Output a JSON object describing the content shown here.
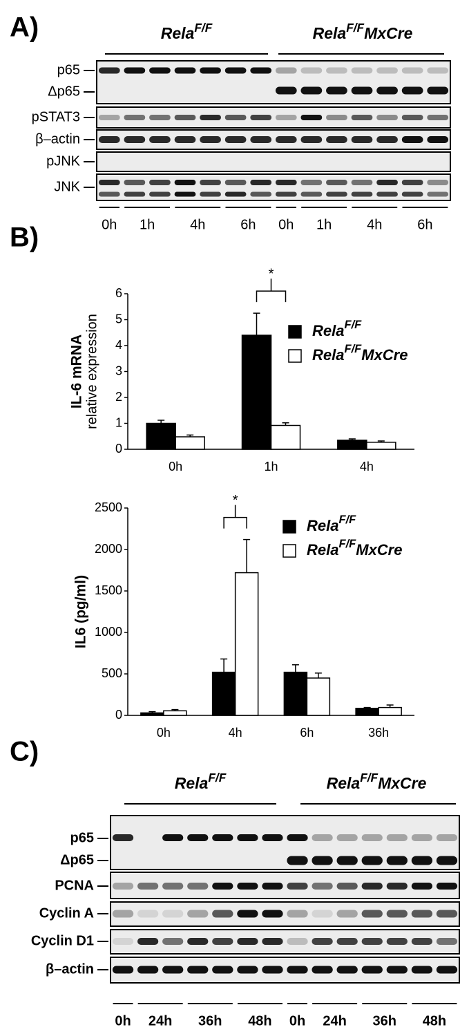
{
  "panel_a": {
    "label": "A)",
    "groups": [
      {
        "name": "Rela",
        "sup": "F/F"
      },
      {
        "name": "Rela",
        "sup": "F/F",
        "suffix": "MxCre"
      }
    ],
    "rows": [
      "p65",
      "Δp65",
      "pSTAT3",
      "β–actin",
      "pJNK",
      "JNK"
    ],
    "timepoints": [
      "0h",
      "1h",
      "4h",
      "6h",
      "0h",
      "1h",
      "4h",
      "6h"
    ]
  },
  "panel_b_label": "B)",
  "chart_data": [
    {
      "type": "bar",
      "y_label": "IL-6 mRNA",
      "y_sublabel": "relative expression",
      "categories": [
        "0h",
        "1h",
        "4h"
      ],
      "series": [
        {
          "name": "Rela",
          "name_sup": "F/F",
          "color": "#000000",
          "values": [
            1.0,
            4.4,
            0.35
          ],
          "errors": [
            0.12,
            0.85,
            0.05
          ]
        },
        {
          "name": "Rela",
          "name_sup": "F/F",
          "name_suffix": "MxCre",
          "color": "#ffffff",
          "values": [
            0.48,
            0.92,
            0.27
          ],
          "errors": [
            0.07,
            0.1,
            0.05
          ]
        }
      ],
      "ylim": [
        0,
        6
      ],
      "yticks": [
        0,
        1,
        2,
        3,
        4,
        5,
        6
      ],
      "annotation": {
        "text": "*",
        "category": "1h"
      }
    },
    {
      "type": "bar",
      "y_label": "IL6 (pg/ml)",
      "categories": [
        "0h",
        "4h",
        "6h",
        "36h"
      ],
      "series": [
        {
          "name": "Rela",
          "name_sup": "F/F",
          "color": "#000000",
          "values": [
            30,
            520,
            520,
            85
          ],
          "errors": [
            15,
            160,
            90,
            10
          ]
        },
        {
          "name": "Rela",
          "name_sup": "F/F",
          "name_suffix": "MxCre",
          "color": "#ffffff",
          "values": [
            55,
            1720,
            450,
            95
          ],
          "errors": [
            15,
            400,
            60,
            30
          ]
        }
      ],
      "ylim": [
        0,
        2500
      ],
      "yticks": [
        0,
        500,
        1000,
        1500,
        2000,
        2500
      ],
      "annotation": {
        "text": "*",
        "category": "4h"
      }
    }
  ],
  "panel_c": {
    "label": "C)",
    "groups": [
      {
        "name": "Rela",
        "sup": "F/F"
      },
      {
        "name": "Rela",
        "sup": "F/F",
        "suffix": "MxCre"
      }
    ],
    "rows": [
      "p65",
      "Δp65",
      "PCNA",
      "Cyclin A",
      "Cyclin D1",
      "β–actin"
    ],
    "timepoints": [
      "0h",
      "24h",
      "36h",
      "48h",
      "0h",
      "24h",
      "36h",
      "48h"
    ]
  }
}
